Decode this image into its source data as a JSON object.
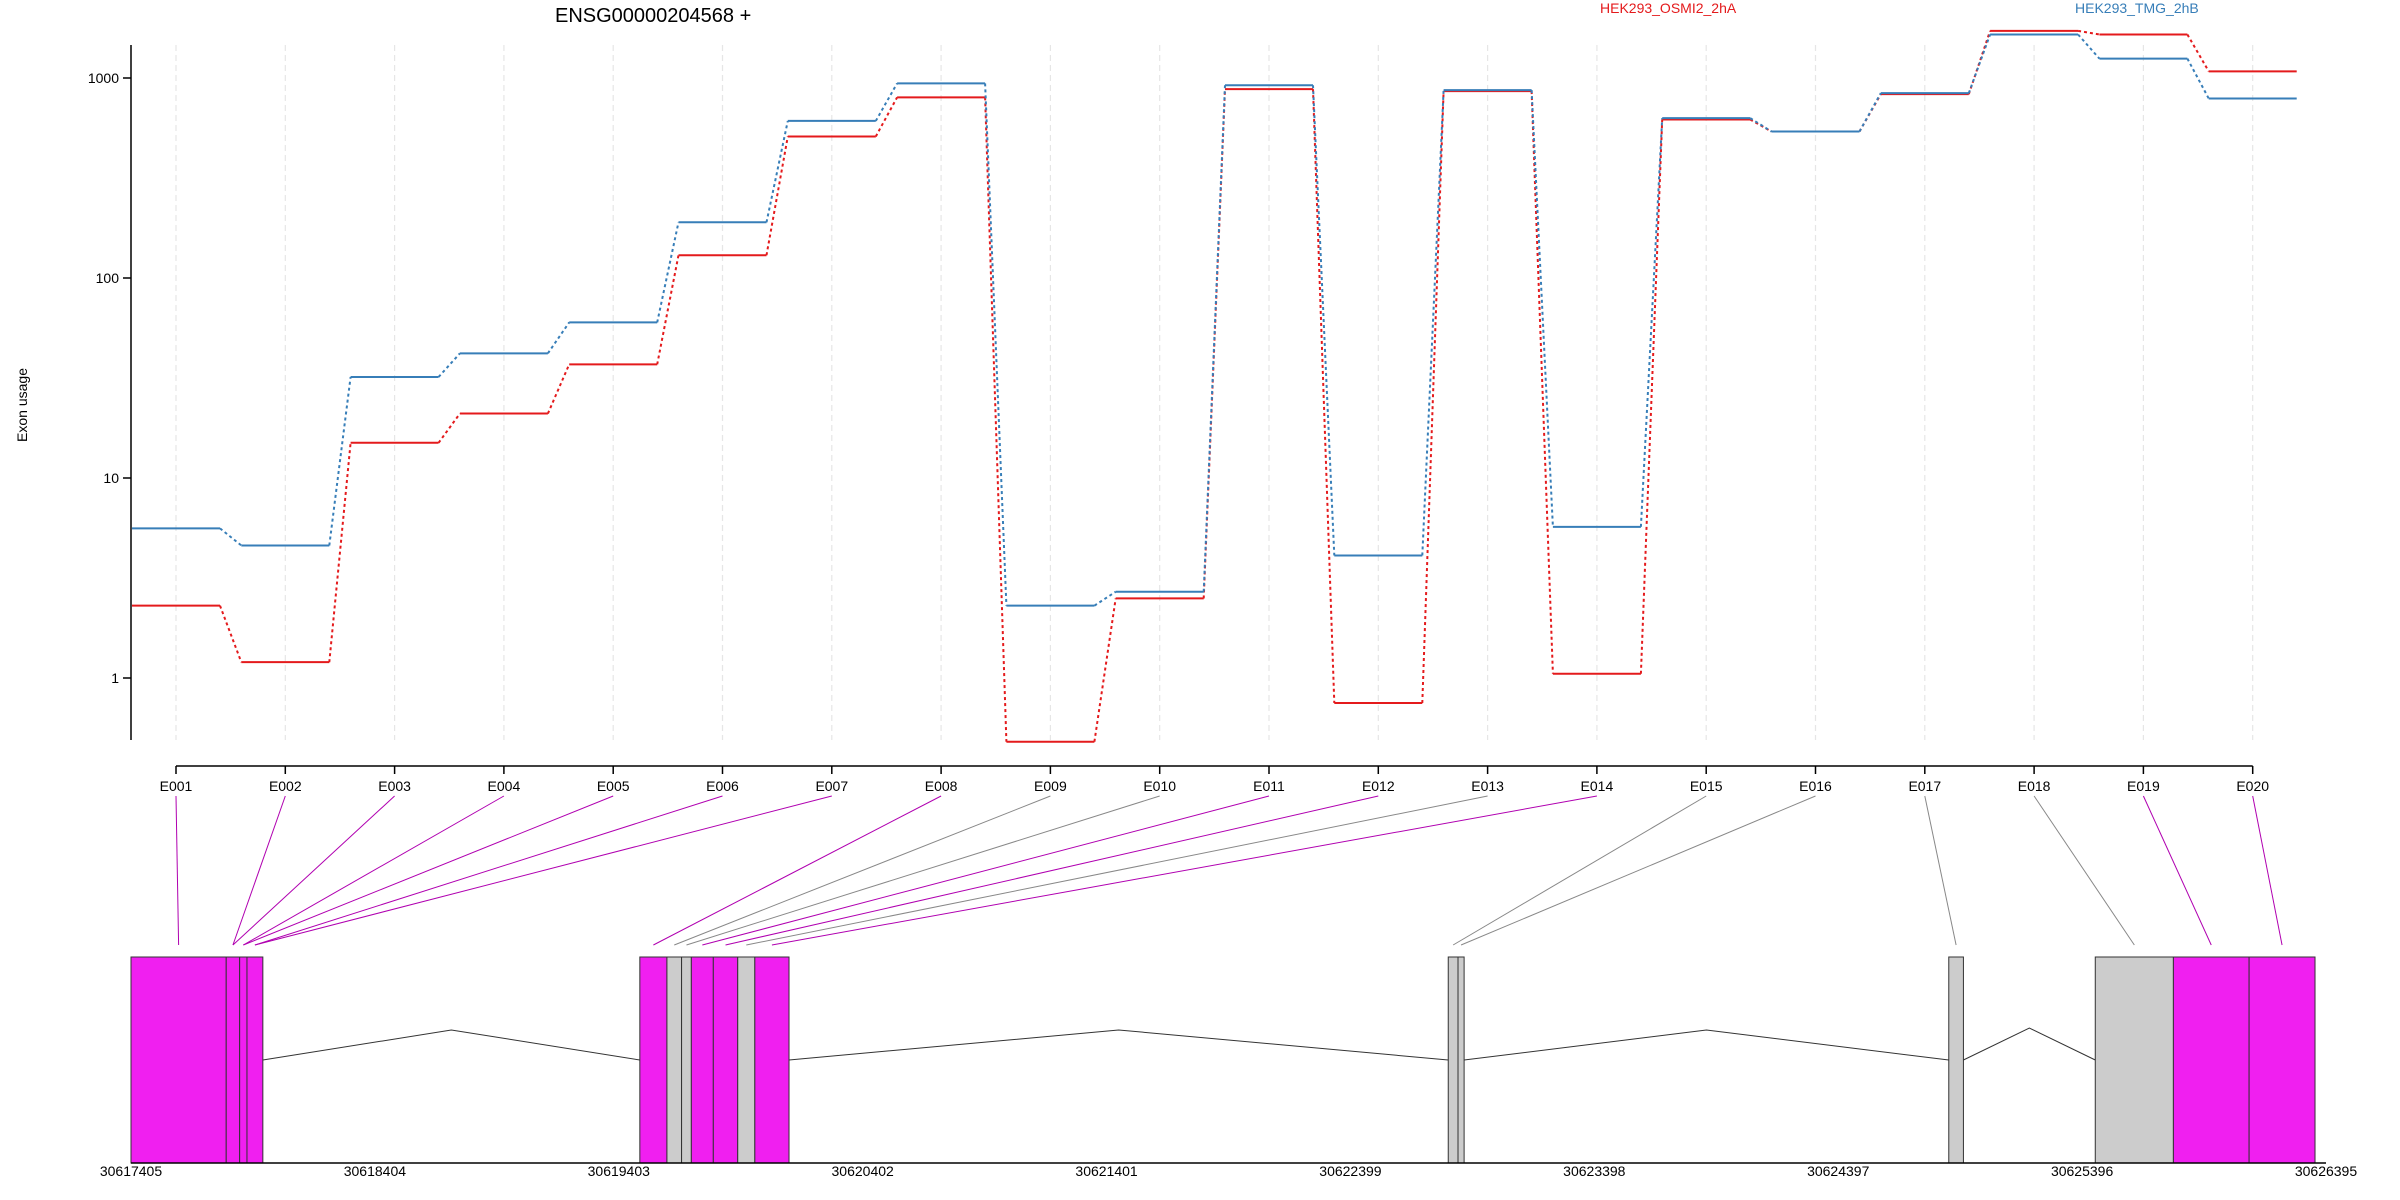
{
  "chart_data": {
    "type": "line",
    "title": "ENSG00000204568 +",
    "ylabel": "Exon usage",
    "yscale": "log",
    "ylim": [
      0.4,
      2300
    ],
    "yticks": [
      "1",
      "10",
      "100",
      "1000"
    ],
    "ytick_values": [
      1,
      10,
      100,
      1000
    ],
    "grid": "vertical",
    "legend_placement": "top",
    "categories": [
      "E001",
      "E002",
      "E003",
      "E004",
      "E005",
      "E006",
      "E007",
      "E008",
      "E009",
      "E010",
      "E011",
      "E012",
      "E013",
      "E014",
      "E015",
      "E016",
      "E017",
      "E018",
      "E019",
      "E020"
    ],
    "series": [
      {
        "name": "HEK293_OSMI2_2hA",
        "color": "#e41a1c",
        "values": [
          2.3,
          1.2,
          15,
          21,
          37,
          130,
          510,
          800,
          0.48,
          2.5,
          880,
          0.75,
          860,
          1.05,
          620,
          540,
          830,
          1720,
          1650,
          1080
        ]
      },
      {
        "name": "HEK293_TMG_2hB",
        "color": "#377eb8",
        "values": [
          5.6,
          4.6,
          32,
          42,
          60,
          190,
          610,
          940,
          2.3,
          2.7,
          920,
          4.1,
          870,
          5.7,
          630,
          540,
          840,
          1650,
          1250,
          790
        ]
      }
    ],
    "gene_model": {
      "coordinate_ticks": [
        "30617405",
        "30618404",
        "30619403",
        "30620402",
        "30621401",
        "30622399",
        "30623398",
        "30624397",
        "30625396",
        "30626395"
      ],
      "coordinate_range": [
        30617405,
        30626395
      ],
      "tested_color": "#f01ff0",
      "untested_color": "#cccccc",
      "exons": [
        {
          "id": "E001",
          "start": 30617405,
          "end": 30617795,
          "tested": true
        },
        {
          "id": "E002",
          "start": 30617795,
          "end": 30617850,
          "tested": true
        },
        {
          "id": "E003",
          "start": 30617850,
          "end": 30617880,
          "tested": true
        },
        {
          "id": "E004",
          "start": 30617880,
          "end": 30617945,
          "tested": true
        },
        {
          "id": "E005",
          "start": 30619489,
          "end": 30619600,
          "tested": true
        },
        {
          "id": "E006",
          "start": 30619600,
          "end": 30619660,
          "tested": false
        },
        {
          "id": "E007",
          "start": 30619660,
          "end": 30619700,
          "tested": false
        },
        {
          "id": "E008",
          "start": 30619700,
          "end": 30619790,
          "tested": true
        },
        {
          "id": "E009",
          "start": 30619790,
          "end": 30619890,
          "tested": true
        },
        {
          "id": "E010",
          "start": 30619890,
          "end": 30619960,
          "tested": false
        },
        {
          "id": "E011",
          "start": 30619960,
          "end": 30620100,
          "tested": true
        },
        {
          "id": "E012",
          "start": 30622800,
          "end": 30622840,
          "tested": false
        },
        {
          "id": "E013",
          "start": 30622840,
          "end": 30622865,
          "tested": false
        },
        {
          "id": "E014",
          "start": 30624850,
          "end": 30624910,
          "tested": false
        },
        {
          "id": "E015",
          "start": 30625450,
          "end": 30625770,
          "tested": false
        },
        {
          "id": "E016",
          "start": 30625770,
          "end": 30626080,
          "tested": true
        },
        {
          "id": "E017",
          "start": 30626080,
          "end": 30626350,
          "tested": true
        }
      ],
      "connectors": [
        {
          "label": "E001",
          "exon_index": 0,
          "tested": true
        },
        {
          "label": "E002",
          "exon_index": 1,
          "tested": true
        },
        {
          "label": "E003",
          "exon_index": 1,
          "tested": true
        },
        {
          "label": "E004",
          "exon_index": 2,
          "tested": true
        },
        {
          "label": "E005",
          "exon_index": 2,
          "tested": true
        },
        {
          "label": "E006",
          "exon_index": 3,
          "tested": true
        },
        {
          "label": "E007",
          "exon_index": 3,
          "tested": true
        },
        {
          "label": "E008",
          "exon_index": 4,
          "tested": true
        },
        {
          "label": "E009",
          "exon_index": 5,
          "tested": false
        },
        {
          "label": "E010",
          "exon_index": 6,
          "tested": false
        },
        {
          "label": "E011",
          "exon_index": 7,
          "tested": true
        },
        {
          "label": "E012",
          "exon_index": 8,
          "tested": true
        },
        {
          "label": "E013",
          "exon_index": 9,
          "tested": false
        },
        {
          "label": "E014",
          "exon_index": 10,
          "tested": true
        },
        {
          "label": "E015",
          "exon_index": 11,
          "tested": false
        },
        {
          "label": "E016",
          "exon_index": 12,
          "tested": false
        },
        {
          "label": "E017",
          "exon_index": 13,
          "tested": false
        },
        {
          "label": "E018",
          "exon_index": 14,
          "tested": false
        },
        {
          "label": "E019",
          "exon_index": 15,
          "tested": true
        },
        {
          "label": "E020",
          "exon_index": 16,
          "tested": true
        }
      ]
    }
  }
}
